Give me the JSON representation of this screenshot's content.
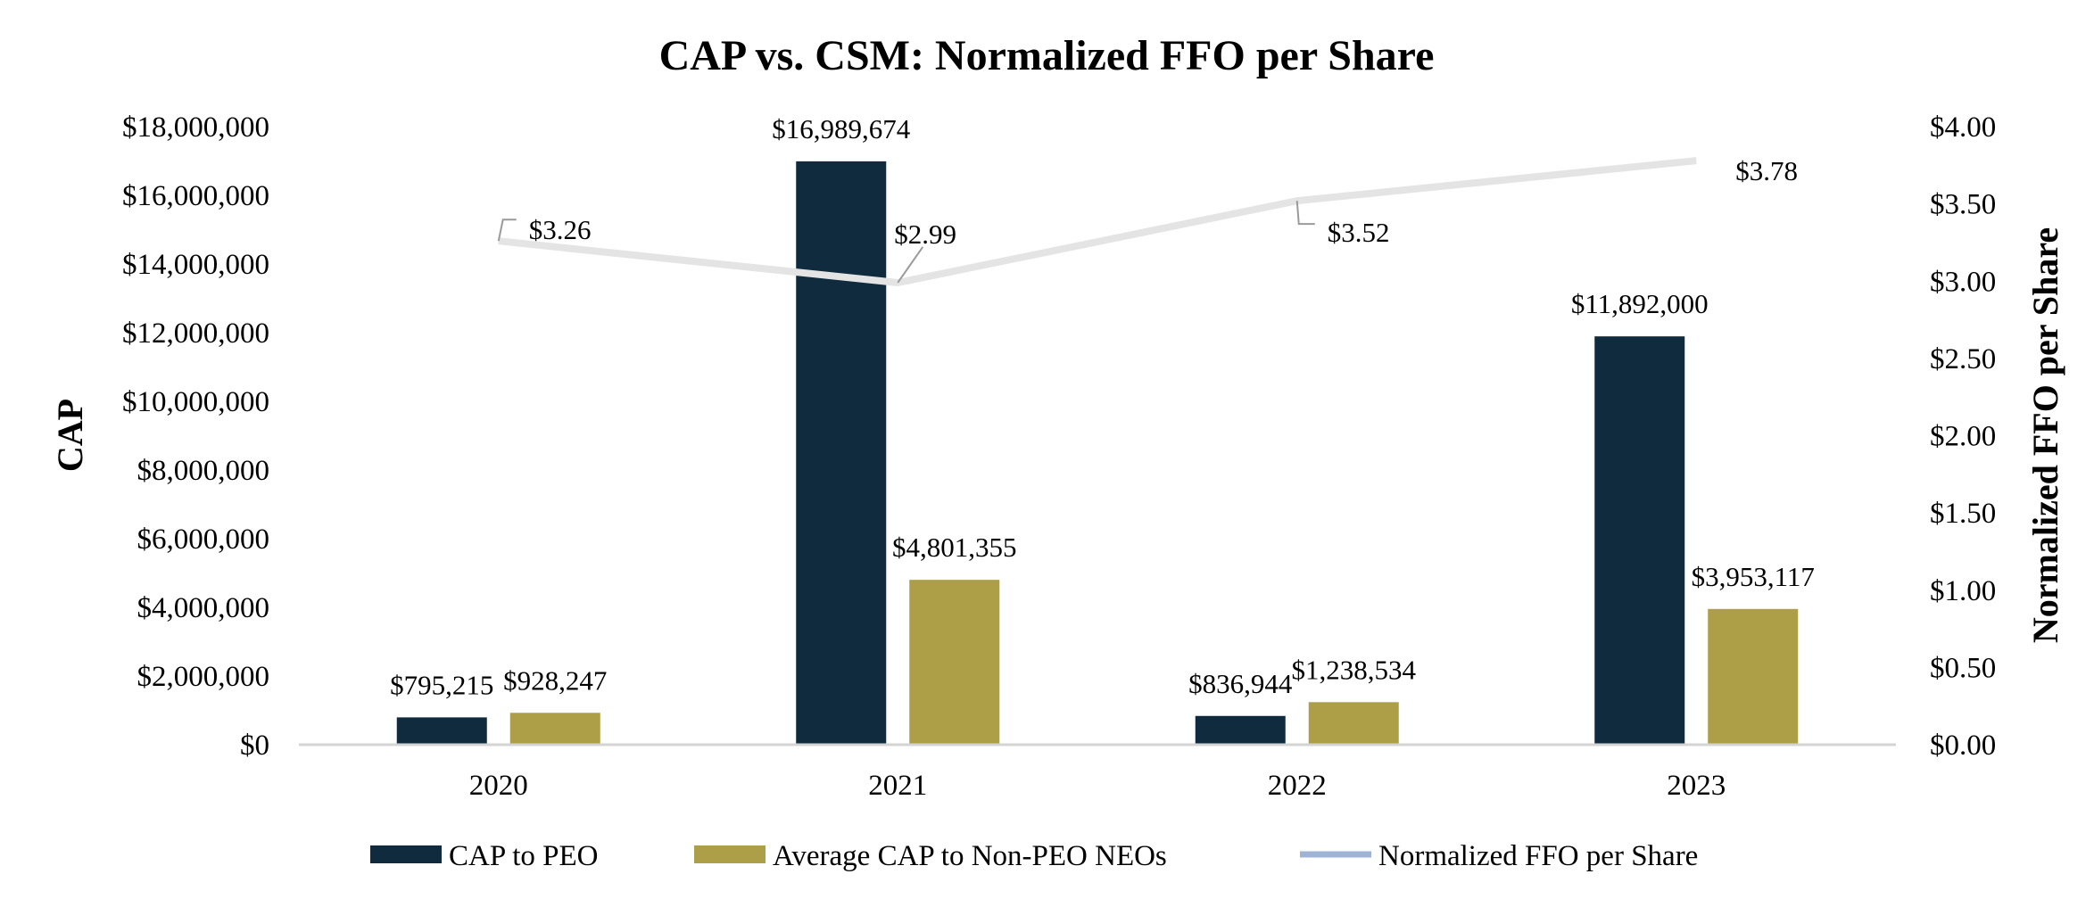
{
  "chart_data": {
    "type": "bar",
    "title": "CAP vs. CSM: Normalized FFO per Share",
    "categories": [
      "2020",
      "2021",
      "2022",
      "2023"
    ],
    "ylabel": "CAP",
    "y2label": "Normalized FFO per Share",
    "ylim": [
      0,
      18000000
    ],
    "y2lim": [
      0,
      4
    ],
    "yticks": [
      "$0",
      "$2,000,000",
      "$4,000,000",
      "$6,000,000",
      "$8,000,000",
      "$10,000,000",
      "$12,000,000",
      "$14,000,000",
      "$16,000,000",
      "$18,000,000"
    ],
    "y2ticks": [
      "$0.00",
      "$0.50",
      "$1.00",
      "$1.50",
      "$2.00",
      "$2.50",
      "$3.00",
      "$3.50",
      "$4.00"
    ],
    "series": [
      {
        "name": "CAP to PEO",
        "kind": "bar",
        "axis": "left",
        "color": "#0f2b3d",
        "values": [
          795215,
          16989674,
          836944,
          11892000
        ],
        "labels": [
          "$795,215",
          "$16,989,674",
          "$836,944",
          "$11,892,000"
        ]
      },
      {
        "name": "Average CAP to Non-PEO NEOs",
        "kind": "bar",
        "axis": "left",
        "color": "#ad9e48",
        "values": [
          928247,
          4801355,
          1238534,
          3953117
        ],
        "labels": [
          "$928,247",
          "$4,801,355",
          "$1,238,534",
          "$3,953,117"
        ]
      },
      {
        "name": "Normalized FFO per Share",
        "kind": "line",
        "axis": "right",
        "color": "#e4e4e4",
        "legend_color": "#9fb3d6",
        "values": [
          3.26,
          2.99,
          3.52,
          3.78
        ],
        "labels": [
          "$3.26",
          "$2.99",
          "$3.52",
          "$3.78"
        ]
      }
    ],
    "legend_position": "bottom",
    "grid": false
  }
}
